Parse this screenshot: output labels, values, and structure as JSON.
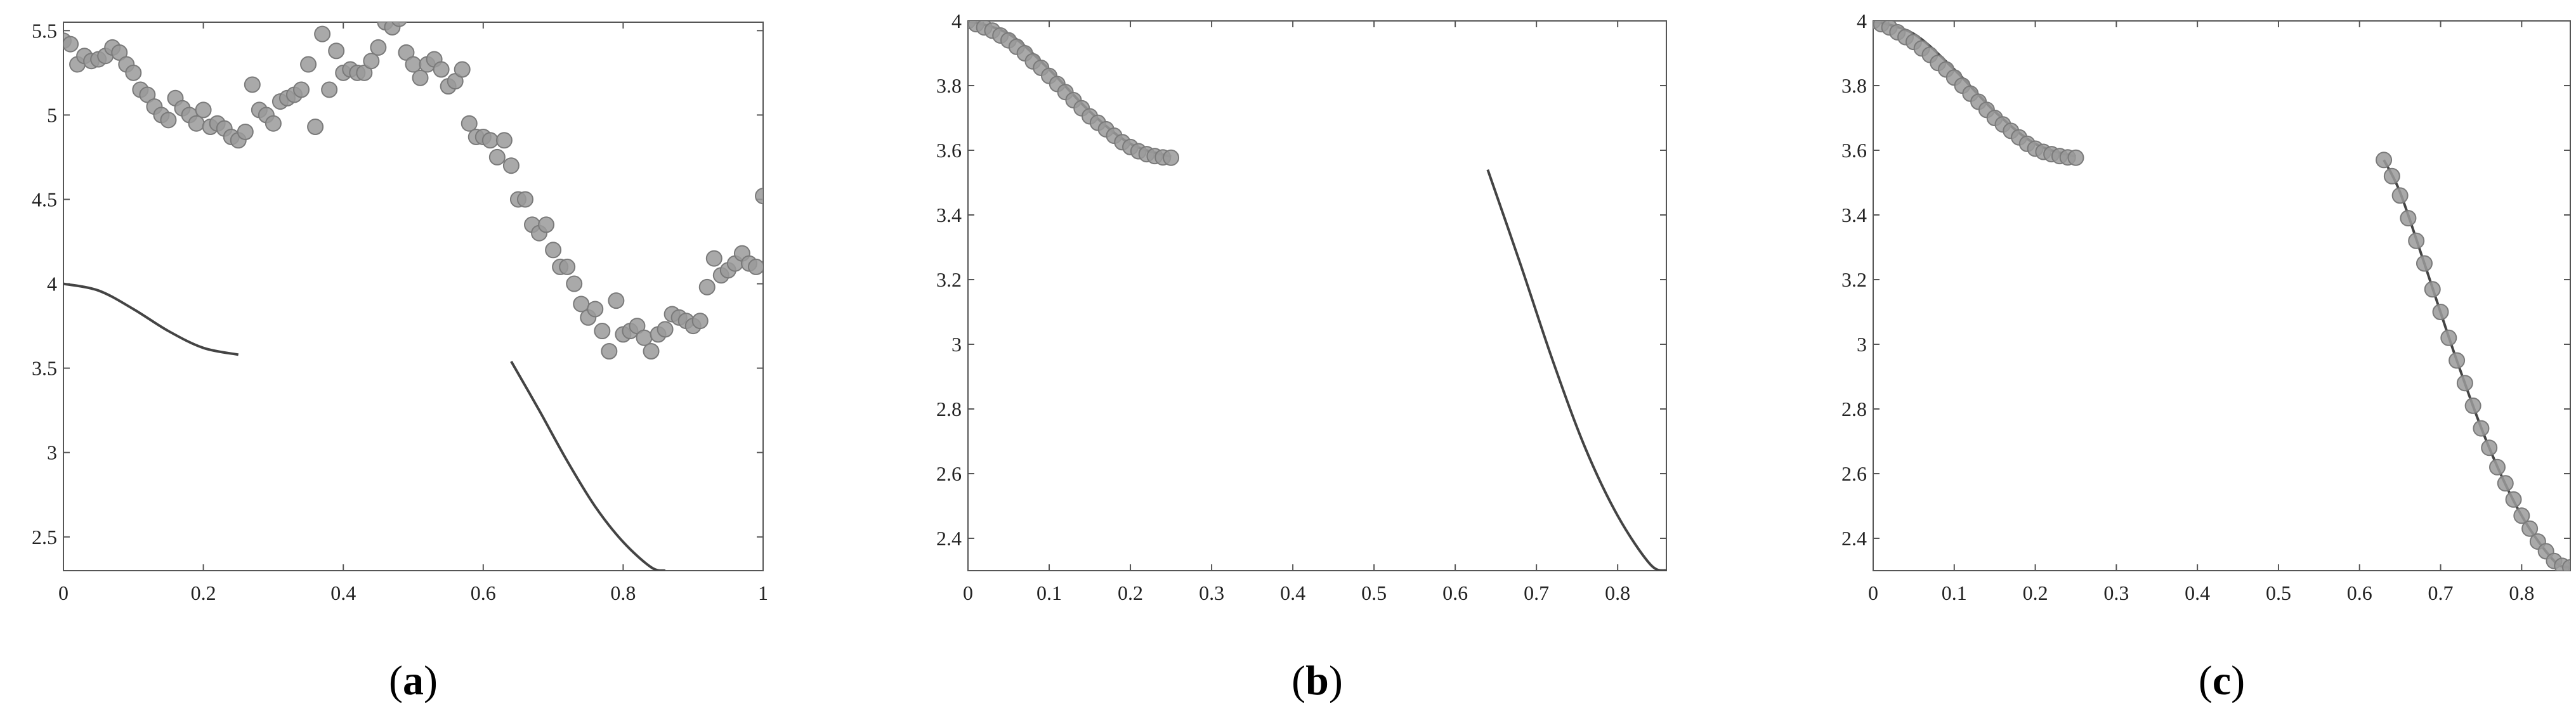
{
  "chart_data": [
    {
      "type": "scatter",
      "panel_label": "a",
      "xlim": [
        0,
        1
      ],
      "ylim": [
        2.3,
        5.55
      ],
      "x_ticks": [
        0,
        0.2,
        0.4,
        0.6,
        0.8,
        1
      ],
      "x_tick_labels": [
        "0",
        "0.2",
        "0.4",
        "0.6",
        "0.8",
        "1"
      ],
      "y_ticks": [
        2.5,
        3,
        3.5,
        4,
        4.5,
        5,
        5.5
      ],
      "y_tick_labels": [
        "2.5",
        "3",
        "3.5",
        "4",
        "4.5",
        "5",
        "5.5"
      ],
      "grid": false,
      "colors": {
        "line": "#444444",
        "marker_fill": "#9a9a9a",
        "marker_edge": "#7a7a7a"
      },
      "curves": [
        {
          "x": [
            0,
            0.05,
            0.1,
            0.15,
            0.2,
            0.25
          ],
          "y": [
            4.0,
            3.96,
            3.85,
            3.72,
            3.62,
            3.58
          ]
        },
        {
          "x": [
            0.64,
            0.68,
            0.72,
            0.76,
            0.8,
            0.84,
            0.86
          ],
          "y": [
            3.54,
            3.25,
            2.95,
            2.68,
            2.47,
            2.32,
            2.3
          ]
        }
      ],
      "points": [
        {
          "x": [
            0.0,
            0.01,
            0.02,
            0.03,
            0.04,
            0.05,
            0.06,
            0.07,
            0.08,
            0.09,
            0.1,
            0.11,
            0.12,
            0.13,
            0.14,
            0.15,
            0.16,
            0.17,
            0.18,
            0.19,
            0.2,
            0.21,
            0.22,
            0.23,
            0.24,
            0.25,
            0.26,
            0.27,
            0.28,
            0.29,
            0.3,
            0.31,
            0.32,
            0.33,
            0.34,
            0.35,
            0.36,
            0.37,
            0.38,
            0.39,
            0.4,
            0.41,
            0.42,
            0.43,
            0.44,
            0.45,
            0.46,
            0.47,
            0.48,
            0.49,
            0.5,
            0.51,
            0.52,
            0.53,
            0.54,
            0.55,
            0.56,
            0.57,
            0.58,
            0.59,
            0.6,
            0.61,
            0.62,
            0.63,
            0.64,
            0.65,
            0.66,
            0.67,
            0.68,
            0.69,
            0.7,
            0.71,
            0.72,
            0.73,
            0.74,
            0.75,
            0.76,
            0.77,
            0.78,
            0.79,
            0.8,
            0.81,
            0.82,
            0.83,
            0.84,
            0.85,
            0.86,
            0.87,
            0.88,
            0.89,
            0.9,
            0.91,
            0.92,
            0.93,
            0.94,
            0.95,
            0.96,
            0.97,
            0.98,
            0.99,
            1.0
          ],
          "y": [
            5.44,
            5.42,
            5.3,
            5.35,
            5.32,
            5.33,
            5.35,
            5.4,
            5.37,
            5.3,
            5.25,
            5.15,
            5.12,
            5.05,
            5.0,
            4.97,
            5.1,
            5.04,
            5.0,
            4.95,
            5.03,
            4.93,
            4.95,
            4.92,
            4.87,
            4.85,
            4.9,
            5.18,
            5.03,
            5.0,
            4.95,
            5.08,
            5.1,
            5.12,
            5.15,
            5.3,
            4.93,
            5.48,
            5.15,
            5.38,
            5.25,
            5.27,
            5.25,
            5.25,
            5.32,
            5.4,
            5.55,
            5.52,
            5.57,
            5.37,
            5.3,
            5.22,
            5.3,
            5.33,
            5.27,
            5.17,
            5.2,
            5.27,
            4.95,
            4.87,
            4.87,
            4.85,
            4.75,
            4.85,
            4.7,
            4.5,
            4.5,
            4.35,
            4.3,
            4.35,
            4.2,
            4.1,
            4.1,
            4.0,
            3.88,
            3.8,
            3.85,
            3.72,
            3.6,
            3.9,
            3.7,
            3.72,
            3.75,
            3.68,
            3.6,
            3.7,
            3.73,
            3.82,
            3.8,
            3.78,
            3.75,
            3.78,
            3.98,
            4.15,
            4.05,
            4.08,
            4.12,
            4.18,
            4.12,
            4.1,
            4.52
          ]
        }
      ]
    },
    {
      "type": "scatter",
      "panel_label": "b",
      "xlim": [
        0,
        0.86
      ],
      "ylim": [
        2.3,
        4.0
      ],
      "x_ticks": [
        0,
        0.1,
        0.2,
        0.3,
        0.4,
        0.5,
        0.6,
        0.7,
        0.8
      ],
      "x_tick_labels": [
        "0",
        "0.1",
        "0.2",
        "0.3",
        "0.4",
        "0.5",
        "0.6",
        "0.7",
        "0.8"
      ],
      "y_ticks": [
        2.4,
        2.6,
        2.8,
        3,
        3.2,
        3.4,
        3.6,
        3.8,
        4
      ],
      "y_tick_labels": [
        "2.4",
        "2.6",
        "2.8",
        "3",
        "3.2",
        "3.4",
        "3.6",
        "3.8",
        "4"
      ],
      "grid": false,
      "colors": {
        "line": "#444444",
        "marker_fill": "#9a9a9a",
        "marker_edge": "#7a7a7a"
      },
      "curves": [
        {
          "x": [
            0,
            0.05,
            0.1,
            0.15,
            0.2,
            0.25
          ],
          "y": [
            4.0,
            3.96,
            3.85,
            3.72,
            3.62,
            3.58
          ]
        },
        {
          "x": [
            0.64,
            0.68,
            0.72,
            0.76,
            0.8,
            0.84,
            0.86
          ],
          "y": [
            3.54,
            3.25,
            2.95,
            2.68,
            2.47,
            2.32,
            2.3
          ]
        }
      ],
      "points": [
        {
          "x": [
            0.0,
            0.01,
            0.02,
            0.03,
            0.04,
            0.05,
            0.06,
            0.07,
            0.08,
            0.09,
            0.1,
            0.11,
            0.12,
            0.13,
            0.14,
            0.15,
            0.16,
            0.17,
            0.18,
            0.19,
            0.2,
            0.21,
            0.22,
            0.23,
            0.24,
            0.25
          ],
          "y": [
            4.0,
            3.99,
            3.98,
            3.97,
            3.955,
            3.94,
            3.92,
            3.9,
            3.875,
            3.855,
            3.83,
            3.805,
            3.78,
            3.755,
            3.73,
            3.705,
            3.685,
            3.665,
            3.645,
            3.625,
            3.61,
            3.597,
            3.588,
            3.582,
            3.578,
            3.577
          ]
        }
      ]
    },
    {
      "type": "scatter",
      "panel_label": "c",
      "xlim": [
        0,
        0.86
      ],
      "ylim": [
        2.3,
        4.0
      ],
      "x_ticks": [
        0,
        0.1,
        0.2,
        0.3,
        0.4,
        0.5,
        0.6,
        0.7,
        0.8
      ],
      "x_tick_labels": [
        "0",
        "0.1",
        "0.2",
        "0.3",
        "0.4",
        "0.5",
        "0.6",
        "0.7",
        "0.8"
      ],
      "y_ticks": [
        2.4,
        2.6,
        2.8,
        3,
        3.2,
        3.4,
        3.6,
        3.8,
        4
      ],
      "y_tick_labels": [
        "2.4",
        "2.6",
        "2.8",
        "3",
        "3.2",
        "3.4",
        "3.6",
        "3.8",
        "4"
      ],
      "grid": false,
      "colors": {
        "line": "#444444",
        "marker_fill": "#9a9a9a",
        "marker_edge": "#7a7a7a"
      },
      "curves": [
        {
          "x": [
            0,
            0.05,
            0.1,
            0.15,
            0.2,
            0.25
          ],
          "y": [
            4.0,
            3.96,
            3.85,
            3.72,
            3.62,
            3.58
          ]
        },
        {
          "x": [
            0.63,
            0.65,
            0.68,
            0.72,
            0.76,
            0.8,
            0.84,
            0.86
          ],
          "y": [
            3.57,
            3.47,
            3.25,
            2.95,
            2.68,
            2.47,
            2.33,
            2.31
          ]
        }
      ],
      "points": [
        {
          "x": [
            0.0,
            0.01,
            0.02,
            0.03,
            0.04,
            0.05,
            0.06,
            0.07,
            0.08,
            0.09,
            0.1,
            0.11,
            0.12,
            0.13,
            0.14,
            0.15,
            0.16,
            0.17,
            0.18,
            0.19,
            0.2,
            0.21,
            0.22,
            0.23,
            0.24,
            0.25
          ],
          "y": [
            4.0,
            3.99,
            3.98,
            3.965,
            3.95,
            3.935,
            3.915,
            3.895,
            3.87,
            3.85,
            3.825,
            3.8,
            3.775,
            3.75,
            3.725,
            3.7,
            3.68,
            3.66,
            3.64,
            3.62,
            3.605,
            3.595,
            3.588,
            3.582,
            3.578,
            3.577
          ]
        },
        {
          "x": [
            0.63,
            0.64,
            0.65,
            0.66,
            0.67,
            0.68,
            0.69,
            0.7,
            0.71,
            0.72,
            0.73,
            0.74,
            0.75,
            0.76,
            0.77,
            0.78,
            0.79,
            0.8,
            0.81,
            0.82,
            0.83,
            0.84,
            0.85,
            0.86
          ],
          "y": [
            3.57,
            3.52,
            3.46,
            3.39,
            3.32,
            3.25,
            3.17,
            3.1,
            3.02,
            2.95,
            2.88,
            2.81,
            2.74,
            2.68,
            2.62,
            2.57,
            2.52,
            2.47,
            2.43,
            2.39,
            2.36,
            2.33,
            2.315,
            2.31
          ]
        }
      ]
    }
  ]
}
